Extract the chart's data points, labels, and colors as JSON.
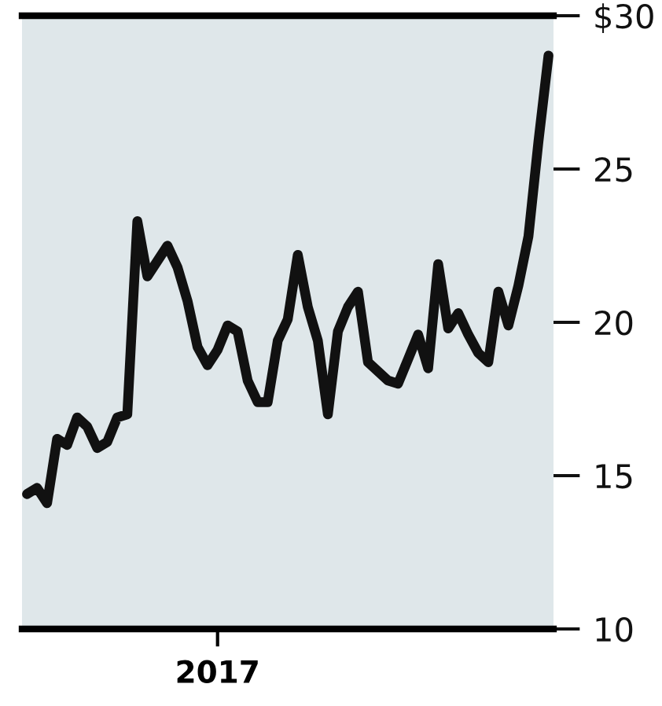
{
  "chart_data": {
    "type": "line",
    "categories": [
      null,
      null,
      null,
      null,
      null,
      null,
      null,
      null,
      null,
      null,
      null,
      null,
      null,
      null,
      null,
      null,
      null,
      null,
      null,
      "2017",
      null,
      null,
      null,
      null,
      null,
      null,
      null,
      null,
      null,
      null,
      null,
      null,
      null,
      null,
      null,
      null,
      null,
      null,
      null,
      null,
      null,
      null,
      null,
      null,
      null,
      null,
      null,
      null,
      null,
      null,
      null,
      null,
      null
    ],
    "series": [
      {
        "color": "#111111",
        "values": [
          14.4,
          14.6,
          14.1,
          16.2,
          16.0,
          16.9,
          16.6,
          15.9,
          16.1,
          16.9,
          17.0,
          23.3,
          21.5,
          22.0,
          22.5,
          21.8,
          20.7,
          19.2,
          18.6,
          19.1,
          19.9,
          19.7,
          18.1,
          17.4,
          17.4,
          19.4,
          20.1,
          22.2,
          20.5,
          19.4,
          17.0,
          19.7,
          20.5,
          21.0,
          18.7,
          18.4,
          18.1,
          18.0,
          18.8,
          19.6,
          18.5,
          21.9,
          19.8,
          20.3,
          19.6,
          19.0,
          18.7,
          21.0,
          19.9,
          21.2,
          22.8,
          25.9,
          28.7
        ]
      }
    ],
    "ylim": [
      10,
      30
    ],
    "yticks": [
      {
        "value": 30,
        "label": "$30"
      },
      25,
      20,
      15,
      10
    ],
    "grid": false,
    "legend": false,
    "marker": "none",
    "line_style": "solid"
  }
}
